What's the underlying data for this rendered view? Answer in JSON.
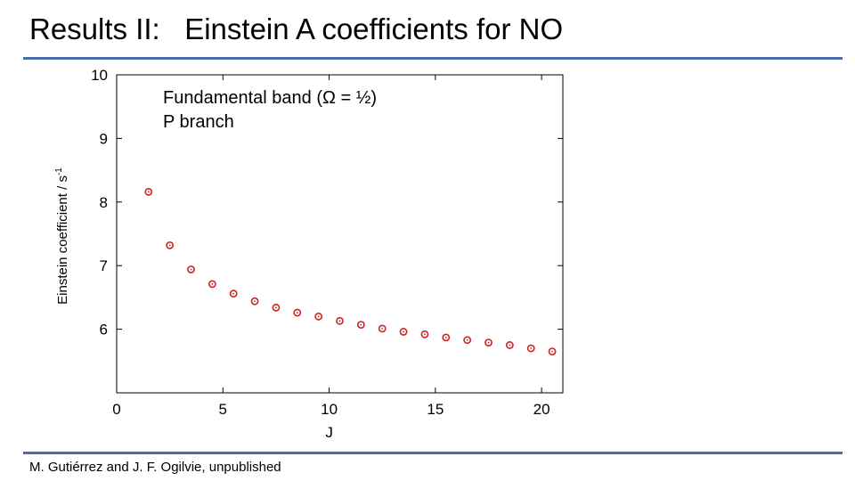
{
  "slide": {
    "title": "Results II:   Einstein A coefficients for NO",
    "footer": "M. Gutiérrez and J. F. Ogilvie, unpublished",
    "rule_color": "#4a6ea8"
  },
  "chart_data": {
    "type": "scatter",
    "title": "",
    "annotation_lines": [
      "Fundamental band (Ω = ½)",
      "P branch"
    ],
    "xlabel": "J",
    "ylabel_main": "Einstein coefficient / s",
    "ylabel_superscript": "-1",
    "xlim": [
      0,
      21
    ],
    "ylim": [
      5,
      10
    ],
    "xticks": [
      0,
      5,
      10,
      15,
      20
    ],
    "xtick_labels": [
      "0",
      "5",
      "10",
      "15",
      "20"
    ],
    "yticks": [
      6,
      7,
      8,
      9,
      10
    ],
    "ytick_labels": [
      "6",
      "7",
      "8",
      "9",
      "10"
    ],
    "grid": false,
    "marker_color": "#cc2222",
    "series": [
      {
        "x": [
          1.5,
          2.5,
          3.5,
          4.5,
          5.5,
          6.5,
          7.5,
          8.5,
          9.5,
          10.5,
          11.5,
          12.5,
          13.5,
          14.5,
          15.5,
          16.5,
          17.5,
          18.5,
          19.5,
          20.5
        ],
        "y": [
          8.16,
          7.32,
          6.94,
          6.71,
          6.56,
          6.44,
          6.34,
          6.26,
          6.2,
          6.13,
          6.07,
          6.01,
          5.96,
          5.92,
          5.87,
          5.83,
          5.79,
          5.75,
          5.7,
          5.65
        ]
      }
    ]
  }
}
